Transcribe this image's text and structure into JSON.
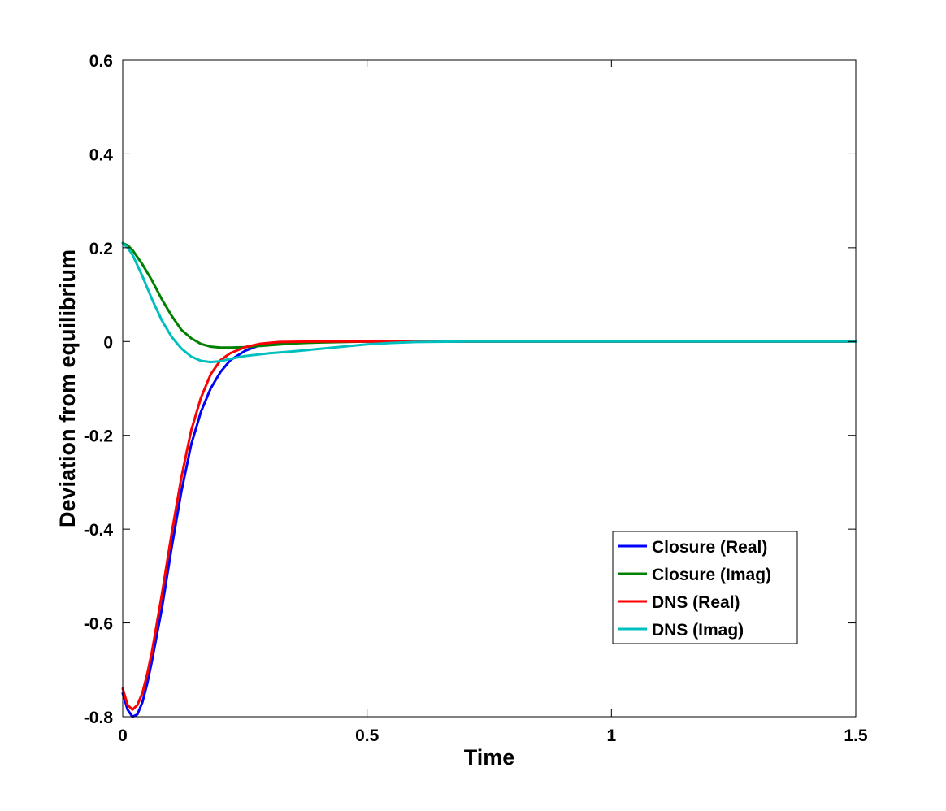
{
  "chart_data": {
    "type": "line",
    "title": "",
    "xlabel": "Time",
    "ylabel": "Deviation from equilibrium",
    "xlim": [
      0,
      1.5
    ],
    "ylim": [
      -0.8,
      0.6
    ],
    "xticks": [
      0,
      0.5,
      1,
      1.5
    ],
    "xtick_labels": [
      "0",
      "0.5",
      "1",
      "1.5"
    ],
    "yticks": [
      -0.8,
      -0.6,
      -0.4,
      -0.2,
      0,
      0.2,
      0.4,
      0.6
    ],
    "ytick_labels": [
      "-0.8",
      "-0.6",
      "-0.4",
      "-0.2",
      "0",
      "0.2",
      "0.4",
      "0.6"
    ],
    "grid": false,
    "legend_position": "bottom-right",
    "series": [
      {
        "name": "Closure (Real)",
        "color": "#0000ff",
        "x": [
          0,
          0.01,
          0.02,
          0.03,
          0.04,
          0.05,
          0.06,
          0.08,
          0.1,
          0.12,
          0.14,
          0.16,
          0.18,
          0.2,
          0.22,
          0.25,
          0.28,
          0.32,
          0.4,
          0.5,
          0.6,
          1.5
        ],
        "y": [
          -0.75,
          -0.785,
          -0.8,
          -0.795,
          -0.77,
          -0.73,
          -0.68,
          -0.57,
          -0.44,
          -0.32,
          -0.22,
          -0.15,
          -0.1,
          -0.065,
          -0.04,
          -0.02,
          -0.008,
          -0.002,
          0,
          0,
          0,
          0
        ]
      },
      {
        "name": "Closure (Imag)",
        "color": "#008000",
        "x": [
          0,
          0.01,
          0.02,
          0.04,
          0.06,
          0.08,
          0.1,
          0.12,
          0.14,
          0.16,
          0.18,
          0.2,
          0.22,
          0.25,
          0.3,
          0.35,
          0.4,
          0.5,
          0.6,
          1.5
        ],
        "y": [
          0.21,
          0.205,
          0.195,
          0.165,
          0.13,
          0.09,
          0.055,
          0.025,
          0.007,
          -0.005,
          -0.011,
          -0.013,
          -0.013,
          -0.012,
          -0.008,
          -0.004,
          -0.002,
          0,
          0,
          0
        ]
      },
      {
        "name": "DNS (Real)",
        "color": "#ff0000",
        "x": [
          0,
          0.01,
          0.02,
          0.03,
          0.04,
          0.05,
          0.06,
          0.08,
          0.1,
          0.12,
          0.14,
          0.16,
          0.18,
          0.2,
          0.22,
          0.25,
          0.28,
          0.32,
          0.4,
          0.5,
          0.6,
          1.5
        ],
        "y": [
          -0.74,
          -0.775,
          -0.785,
          -0.775,
          -0.75,
          -0.71,
          -0.66,
          -0.54,
          -0.41,
          -0.29,
          -0.19,
          -0.12,
          -0.07,
          -0.04,
          -0.025,
          -0.012,
          -0.005,
          -0.001,
          0,
          0,
          0,
          0
        ]
      },
      {
        "name": "DNS (Imag)",
        "color": "#00bfbf",
        "x": [
          0,
          0.01,
          0.02,
          0.04,
          0.06,
          0.08,
          0.1,
          0.12,
          0.14,
          0.16,
          0.18,
          0.2,
          0.22,
          0.25,
          0.3,
          0.35,
          0.4,
          0.45,
          0.5,
          0.55,
          0.6,
          0.7,
          1.5
        ],
        "y": [
          0.21,
          0.2,
          0.185,
          0.14,
          0.09,
          0.045,
          0.01,
          -0.015,
          -0.032,
          -0.041,
          -0.044,
          -0.042,
          -0.037,
          -0.031,
          -0.025,
          -0.021,
          -0.016,
          -0.011,
          -0.006,
          -0.003,
          -0.001,
          0,
          0
        ]
      }
    ]
  }
}
